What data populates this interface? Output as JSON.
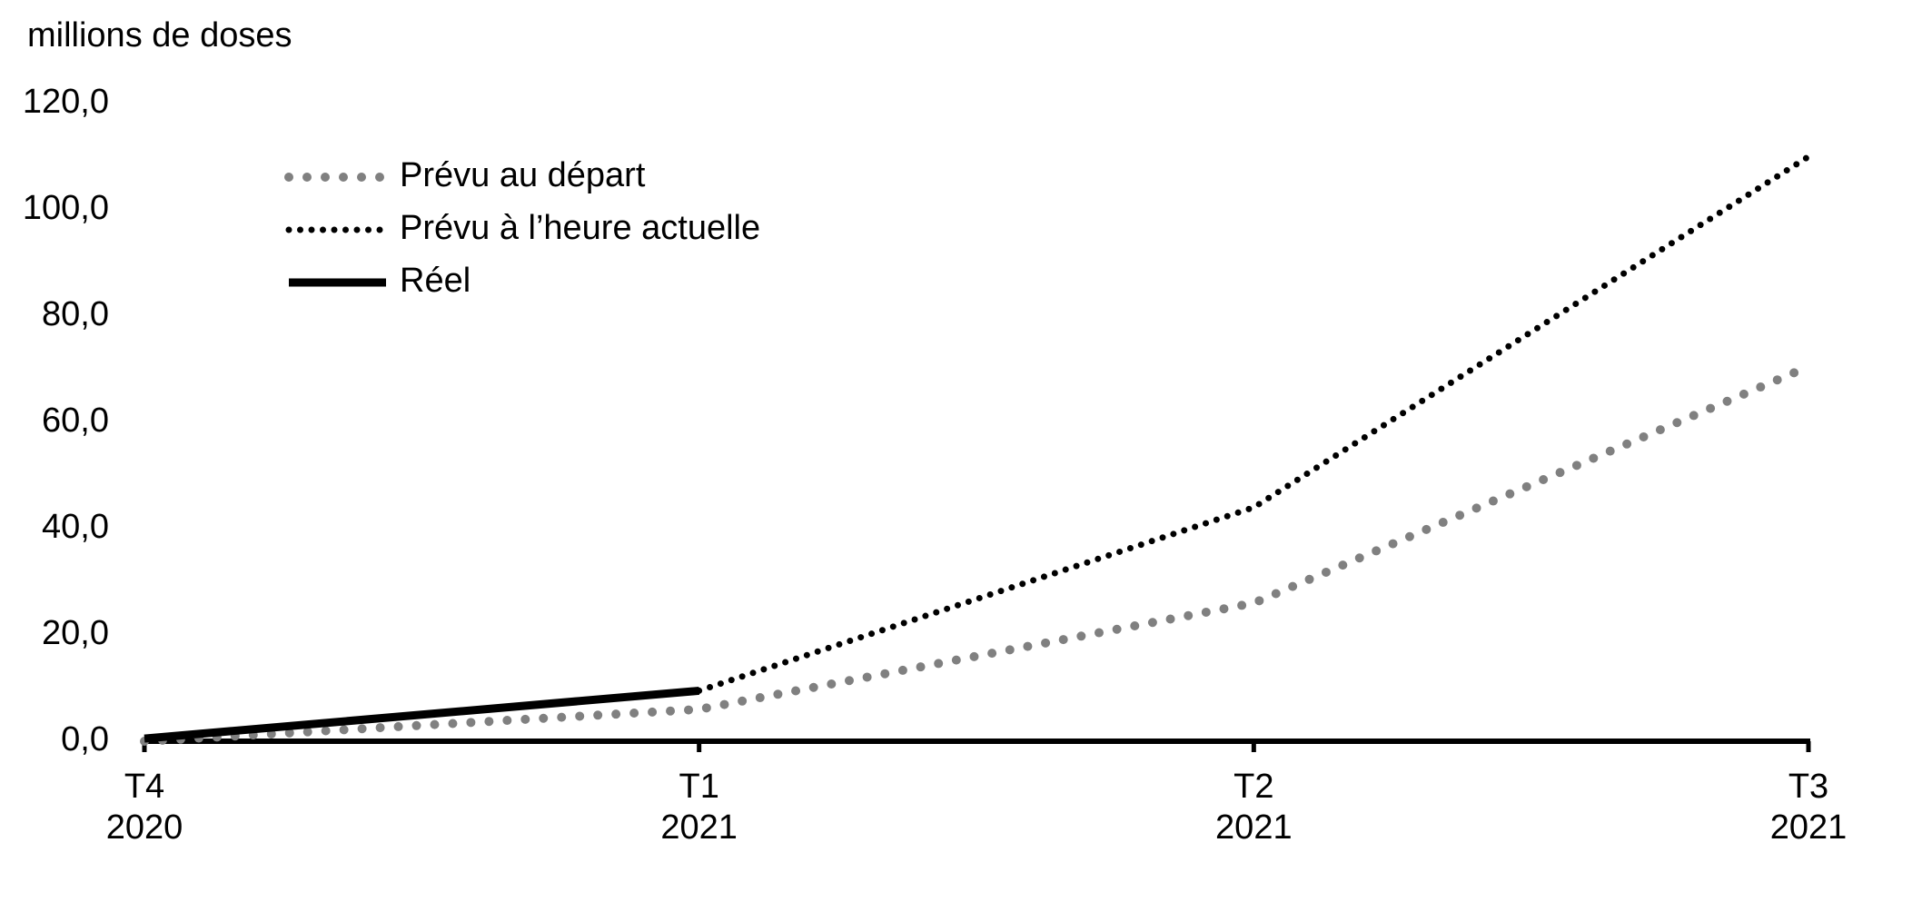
{
  "chart_data": {
    "type": "line",
    "y_label": "millions de doses",
    "categories": [
      [
        "T4",
        "2020"
      ],
      [
        "T1",
        "2021"
      ],
      [
        "T2",
        "2021"
      ],
      [
        "T3",
        "2021"
      ]
    ],
    "series": [
      {
        "name": "Prévu au départ",
        "color": "#808080",
        "style": "dotted-wide",
        "values": [
          0,
          6,
          26,
          70.5
        ]
      },
      {
        "name": "Prévu à l’heure actuelle",
        "color": "#000000",
        "style": "dotted",
        "values": [
          null,
          9.5,
          44,
          110
        ]
      },
      {
        "name": "Réel",
        "color": "#000000",
        "style": "solid",
        "values": [
          0.5,
          9.5,
          null,
          null
        ]
      }
    ],
    "ylim": [
      0,
      120
    ],
    "yticks": [
      {
        "value": 0,
        "label": "0,0"
      },
      {
        "value": 20,
        "label": "20,0"
      },
      {
        "value": 40,
        "label": "40,0"
      },
      {
        "value": 60,
        "label": "60,0"
      },
      {
        "value": 80,
        "label": "80,0"
      },
      {
        "value": 100,
        "label": "100,0"
      },
      {
        "value": 120,
        "label": "120,0"
      }
    ],
    "grid": false,
    "legend": "top-left"
  }
}
